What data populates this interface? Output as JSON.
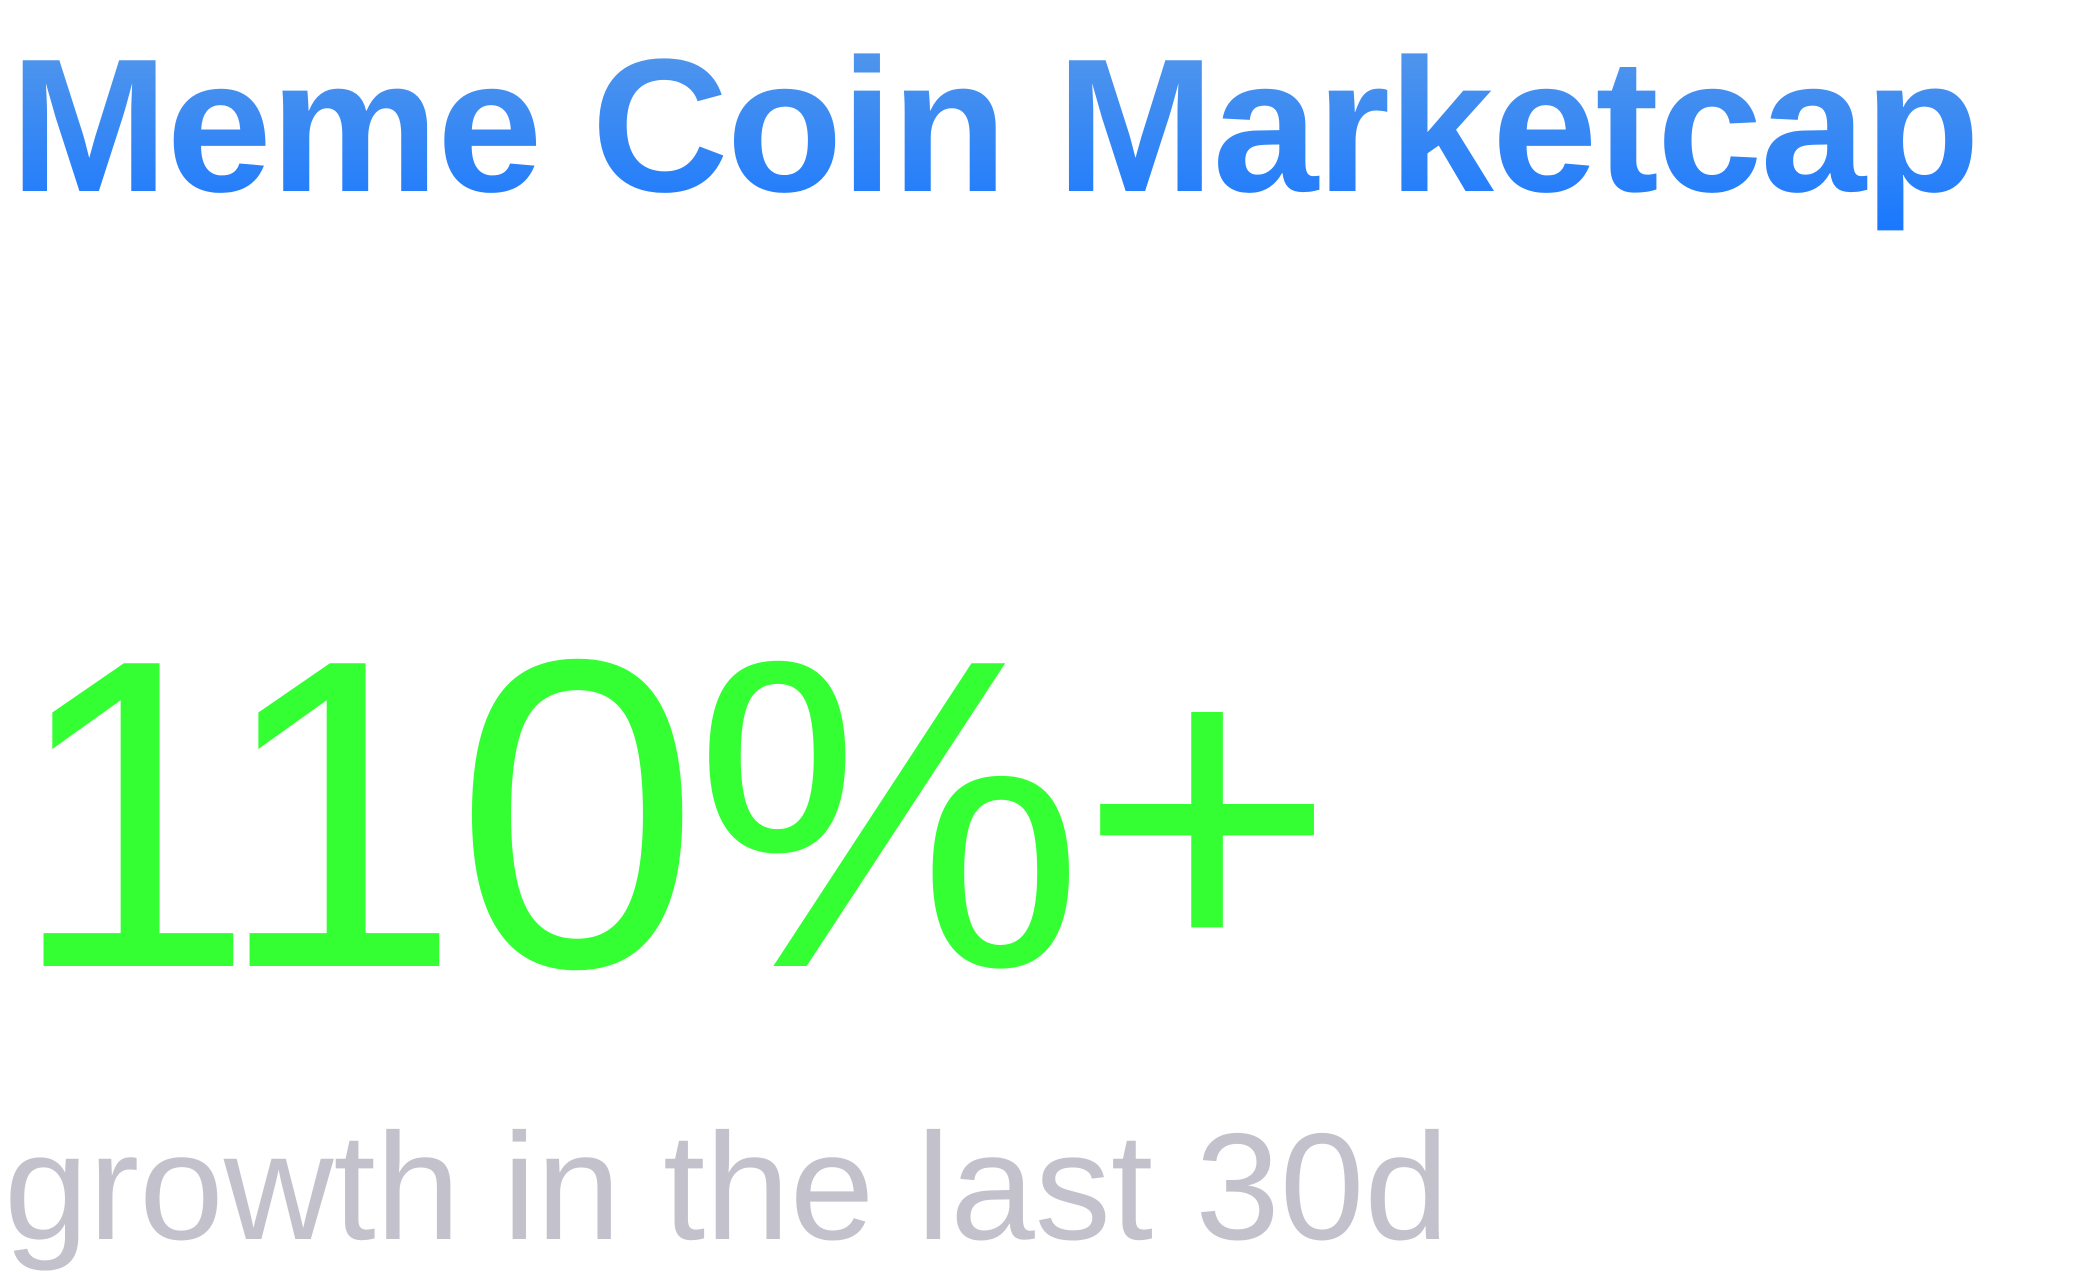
{
  "title": "Meme Coin Marketcap",
  "stat": {
    "value": "110%+",
    "caption": "growth in the last 30d"
  },
  "colors": {
    "title_gradient_top": "#5a9be8",
    "title_gradient_bottom": "#1877ff",
    "stat_value": "#33ff33",
    "caption": "#c3c2cc",
    "background": "#ffffff"
  }
}
